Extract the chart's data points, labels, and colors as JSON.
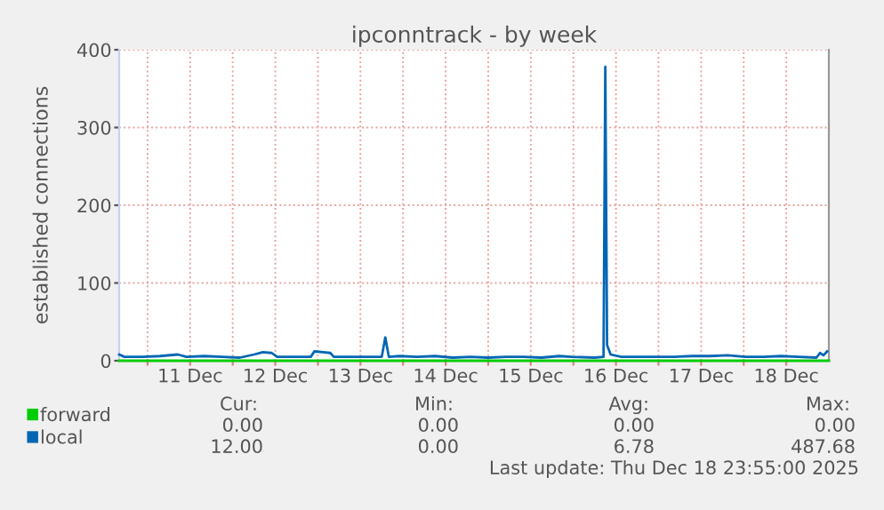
{
  "chart_data": {
    "type": "line",
    "title": "ipconntrack - by week",
    "ylabel": "established connections",
    "xlim": [
      "2025-12-10T16:00",
      "2025-12-19T00:00"
    ],
    "ylim": [
      0,
      400
    ],
    "yticks": [
      0,
      100,
      200,
      300,
      400
    ],
    "xticks": [
      {
        "value": "2025-12-11T00:00",
        "label": null
      },
      {
        "value": "2025-12-11T12:00",
        "label": "11 Dec"
      },
      {
        "value": "2025-12-12T00:00",
        "label": null
      },
      {
        "value": "2025-12-12T12:00",
        "label": "12 Dec"
      },
      {
        "value": "2025-12-13T00:00",
        "label": null
      },
      {
        "value": "2025-12-13T12:00",
        "label": "13 Dec"
      },
      {
        "value": "2025-12-14T00:00",
        "label": null
      },
      {
        "value": "2025-12-14T12:00",
        "label": "14 Dec"
      },
      {
        "value": "2025-12-15T00:00",
        "label": null
      },
      {
        "value": "2025-12-15T12:00",
        "label": "15 Dec"
      },
      {
        "value": "2025-12-16T00:00",
        "label": null
      },
      {
        "value": "2025-12-16T12:00",
        "label": "16 Dec"
      },
      {
        "value": "2025-12-17T00:00",
        "label": null
      },
      {
        "value": "2025-12-17T12:00",
        "label": "17 Dec"
      },
      {
        "value": "2025-12-18T00:00",
        "label": null
      },
      {
        "value": "2025-12-18T12:00",
        "label": "18 Dec"
      }
    ],
    "grid": true,
    "legend": "bottom left",
    "series": [
      {
        "name": "forward",
        "color": "#00cc00",
        "x": [
          "2025-12-10T16:00",
          "2025-12-19T00:00"
        ],
        "values": [
          0,
          0
        ]
      },
      {
        "name": "local",
        "color": "#0066b3",
        "x": [
          "2025-12-10T16:00",
          "2025-12-10T17:30",
          "2025-12-10T22:30",
          "2025-12-11T03:30",
          "2025-12-11T08:30",
          "2025-12-11T11:00",
          "2025-12-11T16:00",
          "2025-12-11T21:00",
          "2025-12-12T02:00",
          "2025-12-12T06:00",
          "2025-12-12T08:30",
          "2025-12-12T11:00",
          "2025-12-12T12:30",
          "2025-12-12T17:00",
          "2025-12-12T22:00",
          "2025-12-12T23:00",
          "2025-12-13T01:30",
          "2025-12-13T03:30",
          "2025-12-13T04:30",
          "2025-12-13T10:30",
          "2025-12-13T15:30",
          "2025-12-13T18:00",
          "2025-12-13T19:00",
          "2025-12-13T20:00",
          "2025-12-13T23:00",
          "2025-12-14T04:00",
          "2025-12-14T09:00",
          "2025-12-14T14:00",
          "2025-12-14T19:00",
          "2025-12-15T00:00",
          "2025-12-15T05:00",
          "2025-12-15T10:00",
          "2025-12-15T15:00",
          "2025-12-15T20:00",
          "2025-12-15T23:30",
          "2025-12-16T06:00",
          "2025-12-16T08:30",
          "2025-12-16T09:00",
          "2025-12-16T09:30",
          "2025-12-16T10:30",
          "2025-12-16T13:30",
          "2025-12-16T18:30",
          "2025-12-16T23:30",
          "2025-12-17T04:30",
          "2025-12-17T09:30",
          "2025-12-17T14:30",
          "2025-12-17T19:30",
          "2025-12-18T00:30",
          "2025-12-18T05:30",
          "2025-12-18T10:30",
          "2025-12-18T15:30",
          "2025-12-18T20:30",
          "2025-12-18T21:30",
          "2025-12-18T22:30",
          "2025-12-18T23:30"
        ],
        "values": [
          8,
          5,
          5,
          6,
          8,
          5,
          6,
          5,
          4,
          8,
          11,
          10,
          5,
          5,
          5,
          12,
          11,
          10,
          5,
          5,
          5,
          5,
          30,
          5,
          6,
          5,
          6,
          4,
          5,
          4,
          5,
          5,
          4,
          6,
          5,
          4,
          5,
          378,
          20,
          8,
          5,
          5,
          5,
          5,
          6,
          6,
          7,
          5,
          5,
          6,
          5,
          4,
          10,
          7,
          12
        ]
      }
    ],
    "annotations": [
      "Cur:",
      "Min:",
      "Avg:",
      "Max:",
      "0.00",
      "0.00",
      "0.00",
      "0.00",
      "12.00",
      "0.00",
      "6.78",
      "487.68",
      "Last update: Thu Dec 18 23:55:00 2025"
    ]
  }
}
